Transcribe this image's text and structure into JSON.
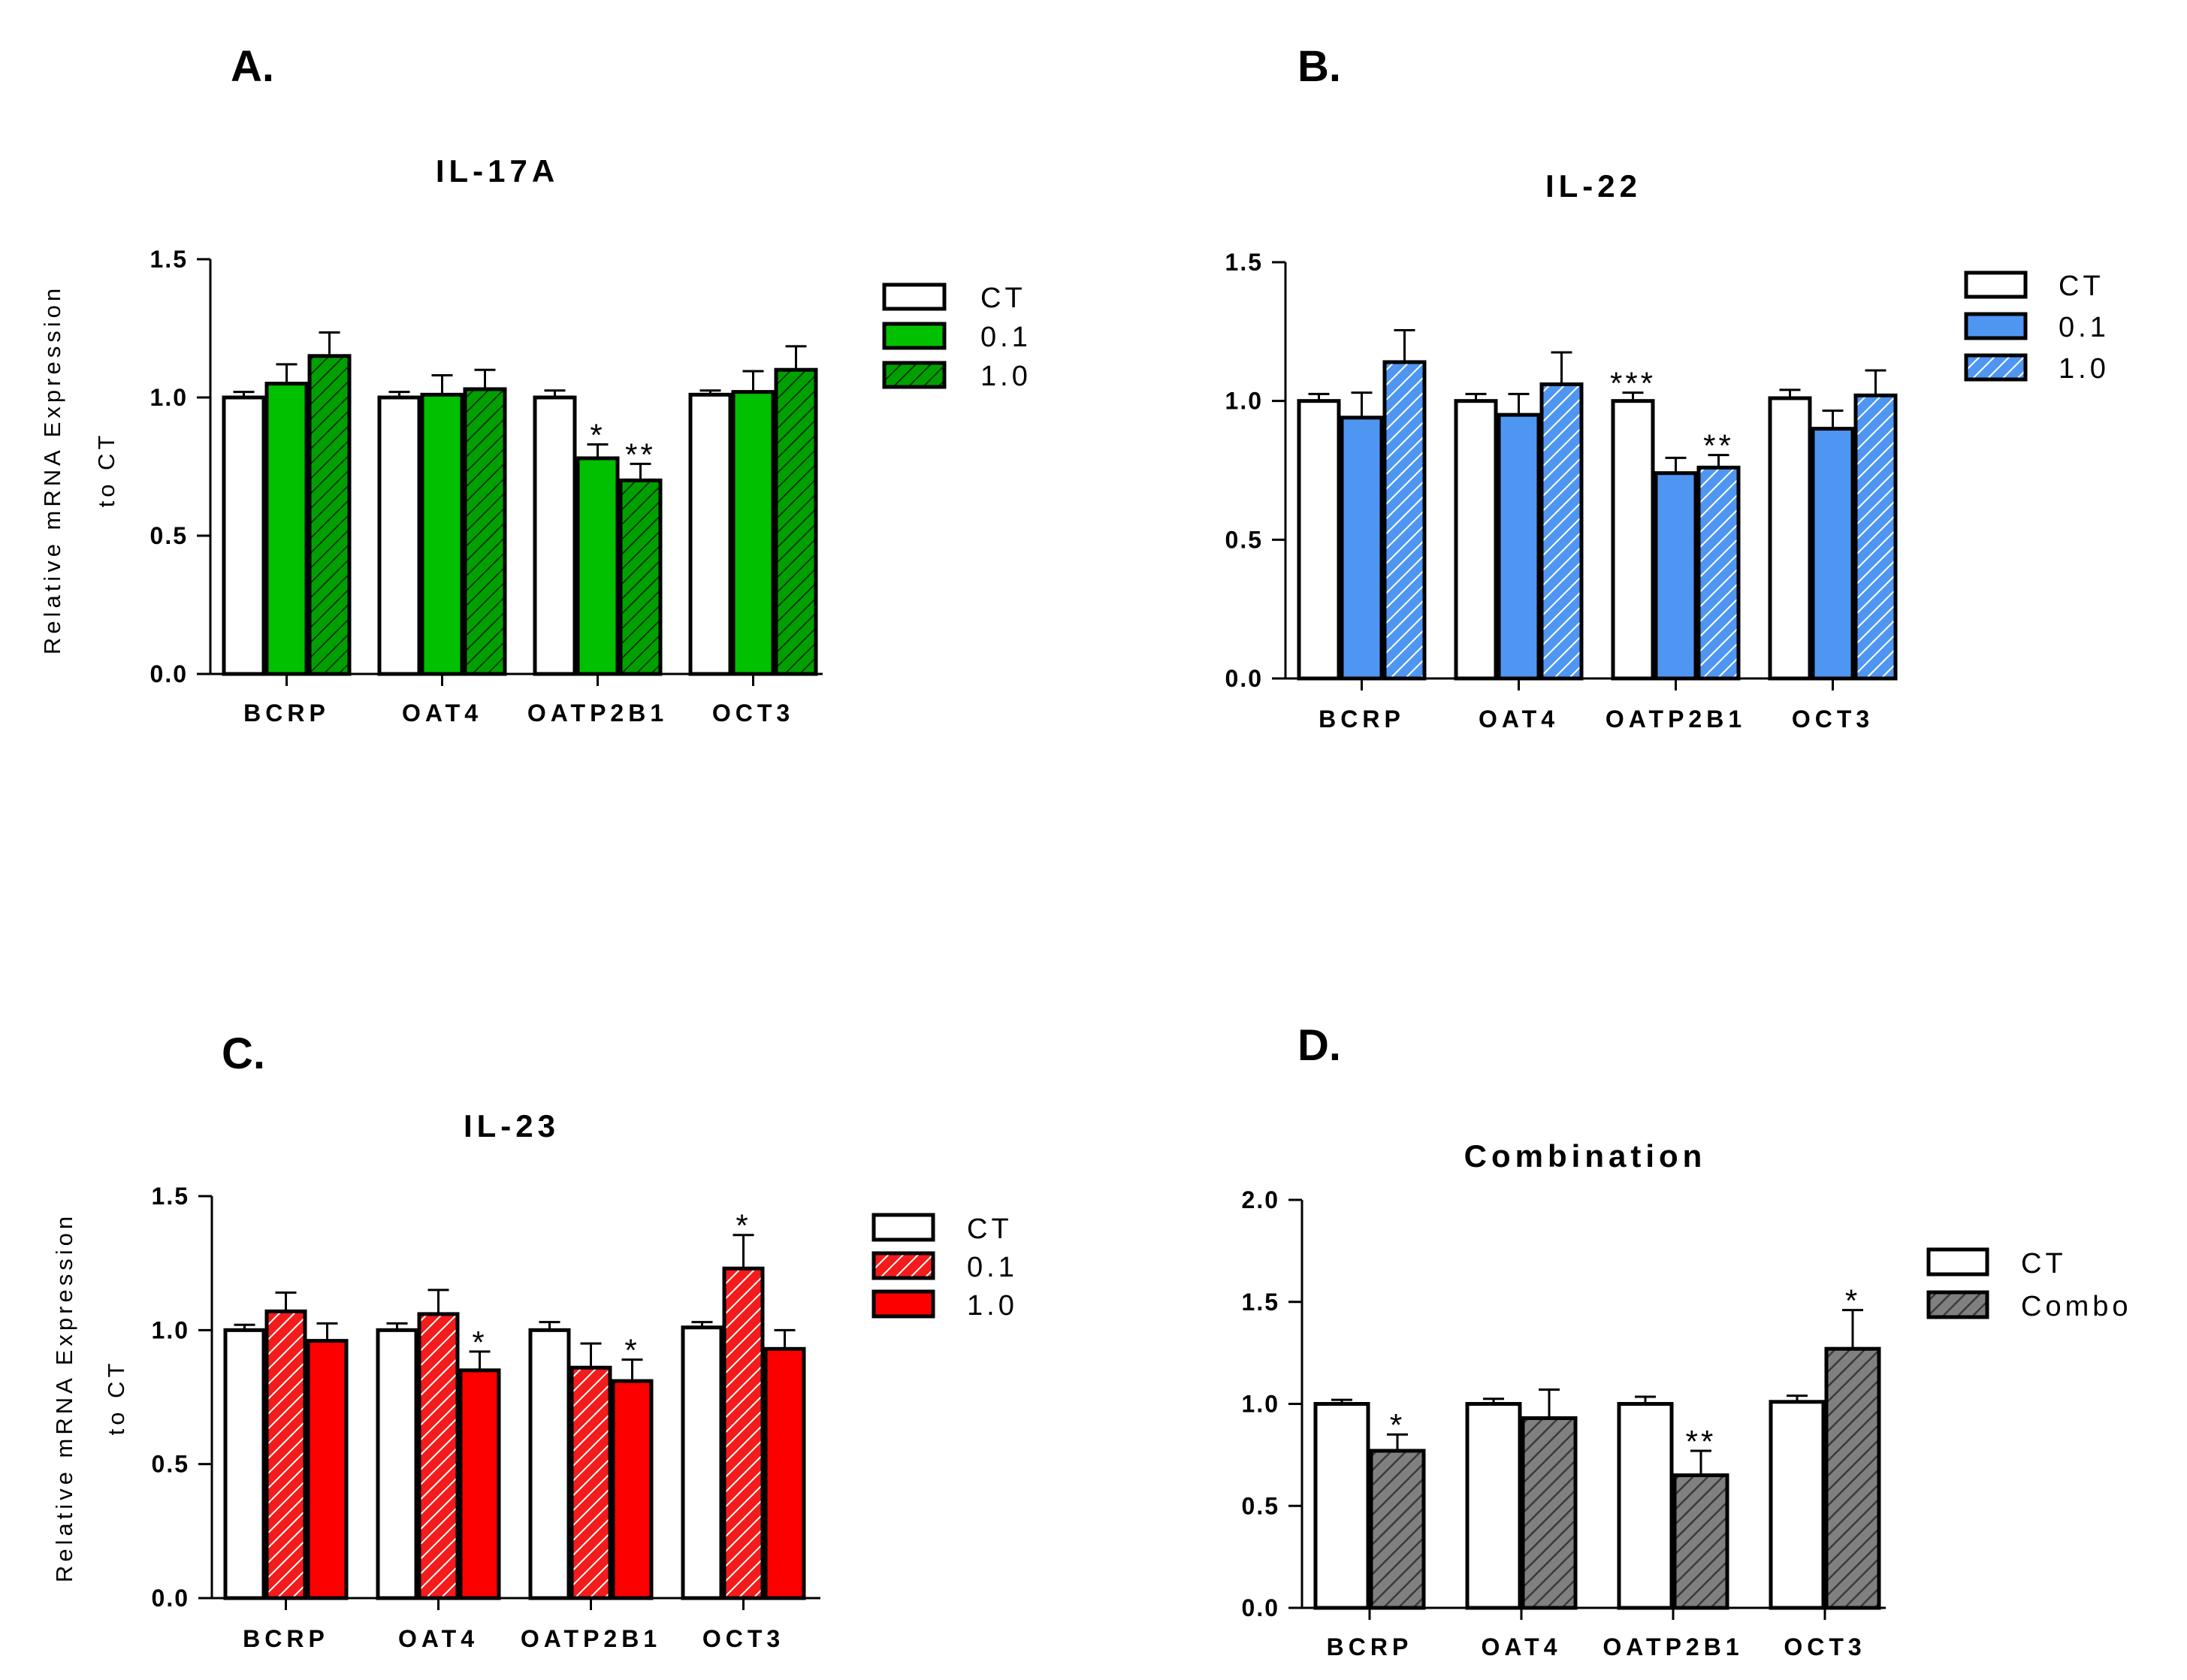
{
  "chart_data": [
    {
      "type": "bar",
      "panel": "A.",
      "title": "IL-17A",
      "xlabel": "",
      "ylabel": [
        "Relative mRNA Expression",
        "to CT"
      ],
      "ylim": [
        0,
        1.5
      ],
      "yticks": [
        "0.0",
        "0.5",
        "1.0",
        "1.5"
      ],
      "categories": [
        "BCRP",
        "OAT4",
        "OATP2B1",
        "OCT3"
      ],
      "series": [
        {
          "name": "CT",
          "color": "#ffffff",
          "pattern": "solid",
          "values": [
            1.0,
            1.0,
            1.0,
            1.01
          ],
          "errors": [
            0.02,
            0.02,
            0.025,
            0.015
          ]
        },
        {
          "name": "0.1",
          "color": "#00c000",
          "pattern": "solid",
          "values": [
            1.05,
            1.01,
            0.78,
            1.02
          ],
          "errors": [
            0.07,
            0.07,
            0.05,
            0.075
          ]
        },
        {
          "name": "1.0",
          "color": "#00a000",
          "pattern": "hatched",
          "values": [
            1.15,
            1.03,
            0.7,
            1.1
          ],
          "errors": [
            0.085,
            0.07,
            0.06,
            0.085
          ]
        }
      ],
      "significance": [
        {
          "category": "OATP2B1",
          "series": "0.1",
          "label": "*"
        },
        {
          "category": "OATP2B1",
          "series": "1.0",
          "label": "**"
        }
      ]
    },
    {
      "type": "bar",
      "panel": "B.",
      "title": "IL-22",
      "xlabel": "",
      "ylabel": "",
      "ylim": [
        0,
        1.5
      ],
      "yticks": [
        "0.0",
        "0.5",
        "1.0",
        "1.5"
      ],
      "categories": [
        "BCRP",
        "OAT4",
        "OATP2B1",
        "OCT3"
      ],
      "series": [
        {
          "name": "CT",
          "color": "#ffffff",
          "pattern": "solid",
          "values": [
            1.0,
            1.0,
            1.0,
            1.01
          ],
          "errors": [
            0.025,
            0.025,
            0.03,
            0.03
          ]
        },
        {
          "name": "0.1",
          "color": "#4f96f3",
          "pattern": "solid",
          "values": [
            0.94,
            0.95,
            0.74,
            0.9
          ],
          "errors": [
            0.09,
            0.075,
            0.055,
            0.065
          ]
        },
        {
          "name": "1.0",
          "color": "#4f96f3",
          "pattern": "hatched",
          "values": [
            1.14,
            1.06,
            0.76,
            1.02
          ],
          "errors": [
            0.115,
            0.115,
            0.045,
            0.09
          ]
        }
      ],
      "significance": [
        {
          "category": "OATP2B1",
          "series": "CT",
          "label": "***"
        },
        {
          "category": "OATP2B1",
          "series": "1.0",
          "label": "**"
        }
      ]
    },
    {
      "type": "bar",
      "panel": "C.",
      "title": "IL-23",
      "xlabel": "",
      "ylabel": [
        "Relative mRNA Expression",
        "to CT"
      ],
      "ylim": [
        0,
        1.5
      ],
      "yticks": [
        "0.0",
        "0.5",
        "1.0",
        "1.5"
      ],
      "categories": [
        "BCRP",
        "OAT4",
        "OATP2B1",
        "OCT3"
      ],
      "series": [
        {
          "name": "CT",
          "color": "#ffffff",
          "pattern": "solid",
          "values": [
            1.0,
            1.0,
            1.0,
            1.01
          ],
          "errors": [
            0.02,
            0.025,
            0.03,
            0.02
          ]
        },
        {
          "name": "0.1",
          "color": "#f41b1b",
          "pattern": "hatched",
          "values": [
            1.07,
            1.06,
            0.86,
            1.23
          ],
          "errors": [
            0.07,
            0.09,
            0.09,
            0.125
          ]
        },
        {
          "name": "1.0",
          "color": "#fc0000",
          "pattern": "solid",
          "values": [
            0.96,
            0.85,
            0.81,
            0.93
          ],
          "errors": [
            0.065,
            0.07,
            0.08,
            0.07
          ]
        }
      ],
      "significance": [
        {
          "category": "OAT4",
          "series": "1.0",
          "label": "*"
        },
        {
          "category": "OATP2B1",
          "series": "1.0",
          "label": "*"
        },
        {
          "category": "OCT3",
          "series": "0.1",
          "label": "*"
        }
      ]
    },
    {
      "type": "bar",
      "panel": "D.",
      "title": "Combination",
      "xlabel": "",
      "ylabel": "",
      "ylim": [
        0,
        2.0
      ],
      "yticks": [
        "0.0",
        "0.5",
        "1.0",
        "1.5",
        "2.0"
      ],
      "categories": [
        "BCRP",
        "OAT4",
        "OATP2B1",
        "OCT3"
      ],
      "series": [
        {
          "name": "CT",
          "color": "#ffffff",
          "pattern": "solid",
          "values": [
            1.0,
            1.0,
            1.0,
            1.01
          ],
          "errors": [
            0.02,
            0.025,
            0.035,
            0.03
          ]
        },
        {
          "name": "Combo",
          "color": "#808080",
          "pattern": "hatched",
          "values": [
            0.77,
            0.93,
            0.65,
            1.27
          ],
          "errors": [
            0.08,
            0.14,
            0.12,
            0.19
          ]
        }
      ],
      "significance": [
        {
          "category": "BCRP",
          "series": "Combo",
          "label": "*"
        },
        {
          "category": "OATP2B1",
          "series": "Combo",
          "label": "**"
        },
        {
          "category": "OCT3",
          "series": "Combo",
          "label": "*"
        }
      ]
    }
  ]
}
